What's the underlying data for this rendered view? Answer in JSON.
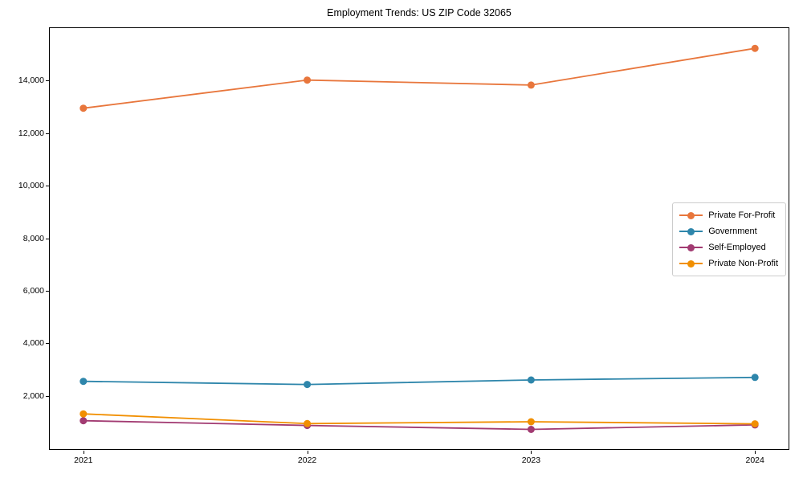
{
  "page": {
    "title": "Employment Trends: US ZIP Code 32065"
  },
  "chart_data": {
    "type": "line",
    "title": "Employment Trends: US ZIP Code 32065",
    "xlabel": "",
    "ylabel": "",
    "x": [
      2021,
      2022,
      2023,
      2024
    ],
    "x_tick_labels": [
      "2021",
      "2022",
      "2023",
      "2024"
    ],
    "series": [
      {
        "name": "Private For-Profit",
        "color": "#E8763C",
        "values": [
          12950,
          14020,
          13830,
          15230
        ]
      },
      {
        "name": "Government",
        "color": "#2E86AB",
        "values": [
          2550,
          2430,
          2600,
          2700
        ]
      },
      {
        "name": "Self-Employed",
        "color": "#A23B72",
        "values": [
          1050,
          870,
          720,
          890
        ]
      },
      {
        "name": "Private Non-Profit",
        "color": "#F18F01",
        "values": [
          1310,
          940,
          1010,
          930
        ]
      }
    ],
    "yticks": [
      2000,
      4000,
      6000,
      8000,
      10000,
      12000,
      14000
    ],
    "ytick_labels": [
      "2,000",
      "4,000",
      "6,000",
      "8,000",
      "10,000",
      "12,000",
      "14,000"
    ],
    "xlim": [
      2020.85,
      2024.15
    ],
    "ylim": [
      -30,
      16000
    ],
    "grid": false,
    "legend_position": "center right",
    "marker": "circle",
    "line_width": 1.8,
    "marker_radius": 4.5,
    "background": "#ffffff"
  }
}
